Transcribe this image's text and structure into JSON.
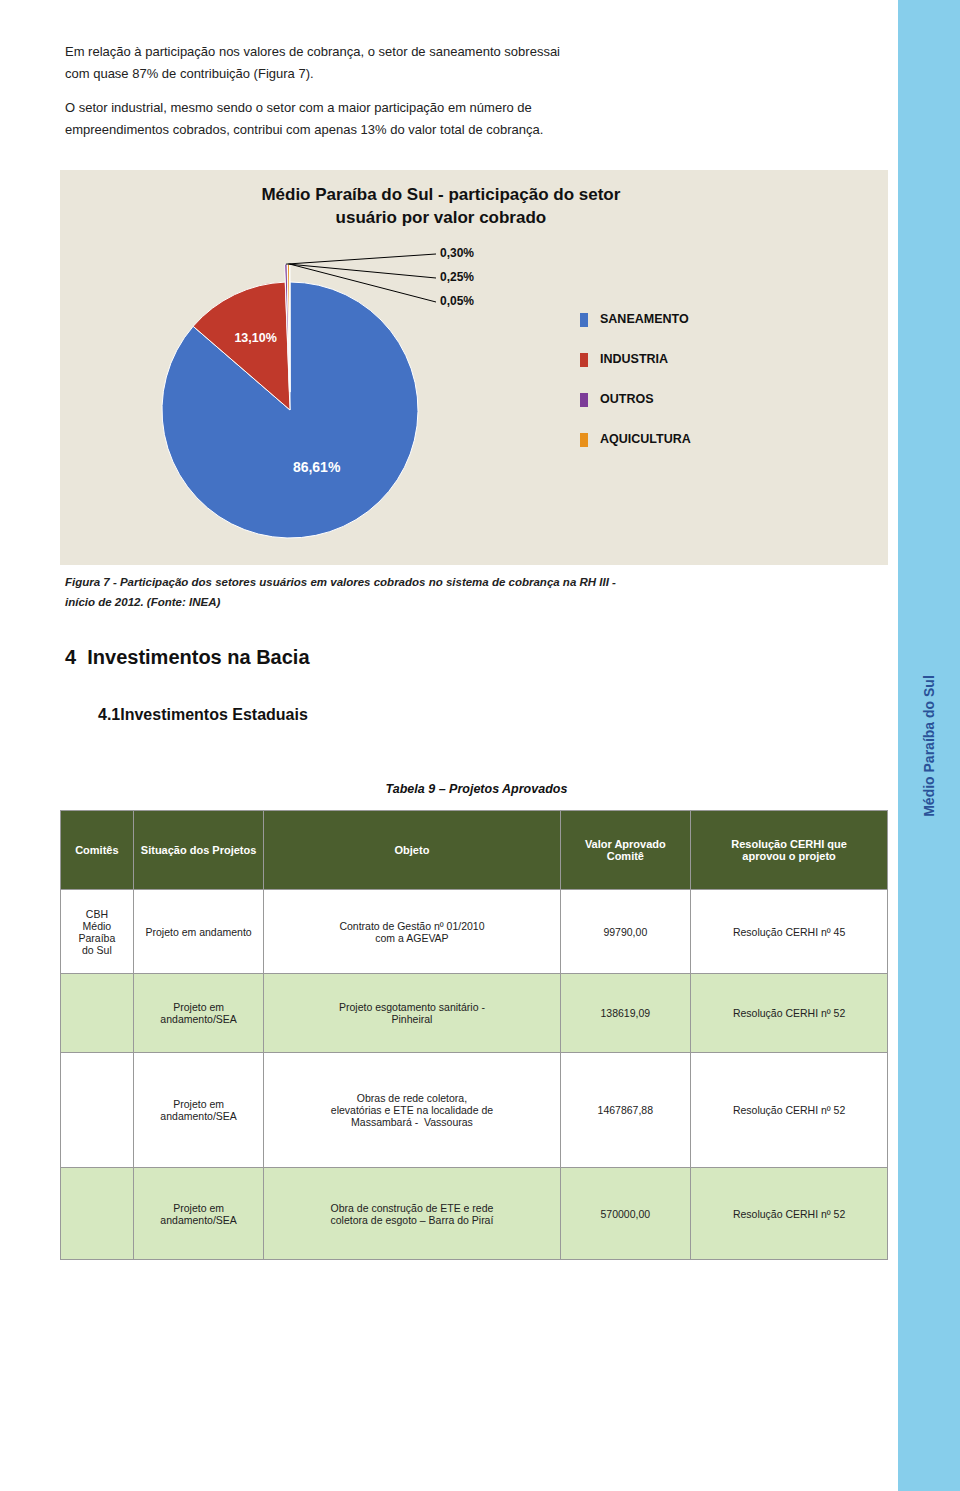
{
  "chart_data": {
    "type": "pie",
    "title": "Médio Paraíba do Sul - participação do setor\nusuário por valor cobrado",
    "values": [
      86.61,
      13.1,
      0.3,
      0.25,
      0.05
    ],
    "value_labels": [
      "86,61%",
      "13,10%",
      "0,30%",
      "0,25%",
      "0,05%"
    ],
    "colors": [
      "#4472C4",
      "#C0392B",
      "#7D3C98",
      "#E8901A",
      "#E8901A"
    ],
    "data_labels": true,
    "legend_entries": [
      {
        "name": "SANEAMENTO",
        "color": "#4472C4"
      },
      {
        "name": "INDUSTRIA",
        "color": "#C0392B"
      },
      {
        "name": "OUTROS",
        "color": "#7D3C98"
      },
      {
        "name": "AQUICULTURA",
        "color": "#E8901A"
      }
    ]
  },
  "page": {
    "paragraphs": [
      [
        "Em relação à participação nos valores de cobrança, o setor de saneamento sobressai",
        "com quase 87% de contribuição (Figura 7)."
      ],
      [
        "O setor industrial, mesmo sendo o setor com a maior participação em número de",
        "empreendimentos cobrados, contribui com apenas 13% do valor total de cobrança."
      ]
    ],
    "caption": [
      "Figura 7 - Participação dos setores usuários em valores cobrados no sistema de cobrança na RH III -",
      "início de 2012. (Fonte: INEA)"
    ],
    "section_title": "4  Investimentos na Bacia",
    "subsection_title": "4.1Investimentos Estaduais",
    "sidebar_text": "Médio Paraíba do Sul"
  },
  "table": {
    "title": "Tabela 9 – Projetos Aprovados",
    "header": [
      "Comitês",
      "Situação dos Projetos",
      "Objeto",
      "Valor Aprovado\nComitê",
      "Resolução CERHI que\naprovou o projeto"
    ],
    "rows": [
      [
        "CBH\nMédio\nParaíba\ndo Sul",
        "Projeto em andamento",
        "Contrato de Gestão nº 01/2010\ncom a AGEVAP",
        "99790,00",
        "Resolução CERHI nº 45"
      ],
      [
        null,
        "Projeto em\nandamento/SEA",
        "Projeto esgotamento sanitário -\nPinheiral",
        "138619,09",
        "Resolução CERHI nº 52"
      ],
      [
        null,
        "Projeto em\nandamento/SEA",
        "Obras de rede coletora,\nelevatórias e ETE na localidade de\nMassambará -  Vassouras",
        "1467867,88",
        "Resolução CERHI nº 52"
      ],
      [
        null,
        "Projeto em\nandamento/SEA",
        "Obra de construção de ETE e rede\ncoletora de esgoto – Barra do Piraí",
        "570000,00",
        "Resolução CERHI nº 52"
      ]
    ]
  }
}
